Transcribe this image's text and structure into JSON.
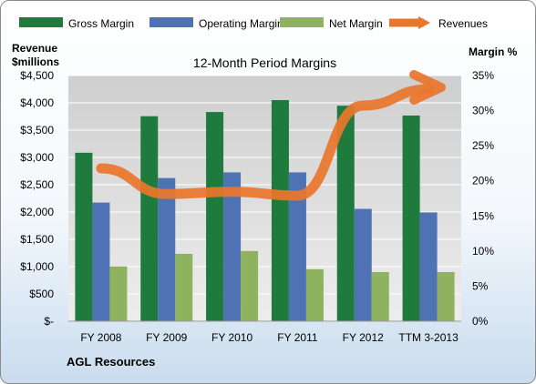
{
  "chart_data": {
    "type": "bar",
    "title": "12-Month Period Margins",
    "ylabel_left": [
      "Revenue",
      "$millions"
    ],
    "ylabel_right": "Margin %",
    "company": "AGL Resources",
    "categories": [
      "FY 2008",
      "FY 2009",
      "FY 2010",
      "FY 2011",
      "FY 2012",
      "TTM 3-2013"
    ],
    "y_left": {
      "min": 0,
      "max": 4500,
      "step": 500,
      "tick_labels": [
        "$-",
        "$500",
        "$1,000",
        "$1,500",
        "$2,000",
        "$2,500",
        "$3,000",
        "$3,500",
        "$4,000",
        "$4,500"
      ]
    },
    "y_right": {
      "min": 0,
      "max": 35,
      "step": 5,
      "tick_labels": [
        "0%",
        "5%",
        "10%",
        "15%",
        "20%",
        "25%",
        "30%",
        "35%"
      ]
    },
    "grid": true,
    "legend_position": "top",
    "series": [
      {
        "name": "Gross Margin",
        "kind": "bar",
        "axis": "right",
        "color": "#1f7a3d",
        "values": [
          24.0,
          29.2,
          29.8,
          31.5,
          30.7,
          29.3
        ]
      },
      {
        "name": "Operating Margin",
        "kind": "bar",
        "axis": "right",
        "color": "#4f72b4",
        "values": [
          16.9,
          20.4,
          21.2,
          21.2,
          16.0,
          15.5
        ]
      },
      {
        "name": "Net Margin",
        "kind": "bar",
        "axis": "right",
        "color": "#8fb25f",
        "values": [
          7.8,
          9.6,
          10.0,
          7.4,
          7.0,
          7.0
        ]
      },
      {
        "name": "Revenues",
        "kind": "line",
        "axis": "left",
        "color": "#e8762c",
        "values": [
          2800,
          2330,
          2370,
          2300,
          3950,
          4250
        ]
      }
    ]
  }
}
